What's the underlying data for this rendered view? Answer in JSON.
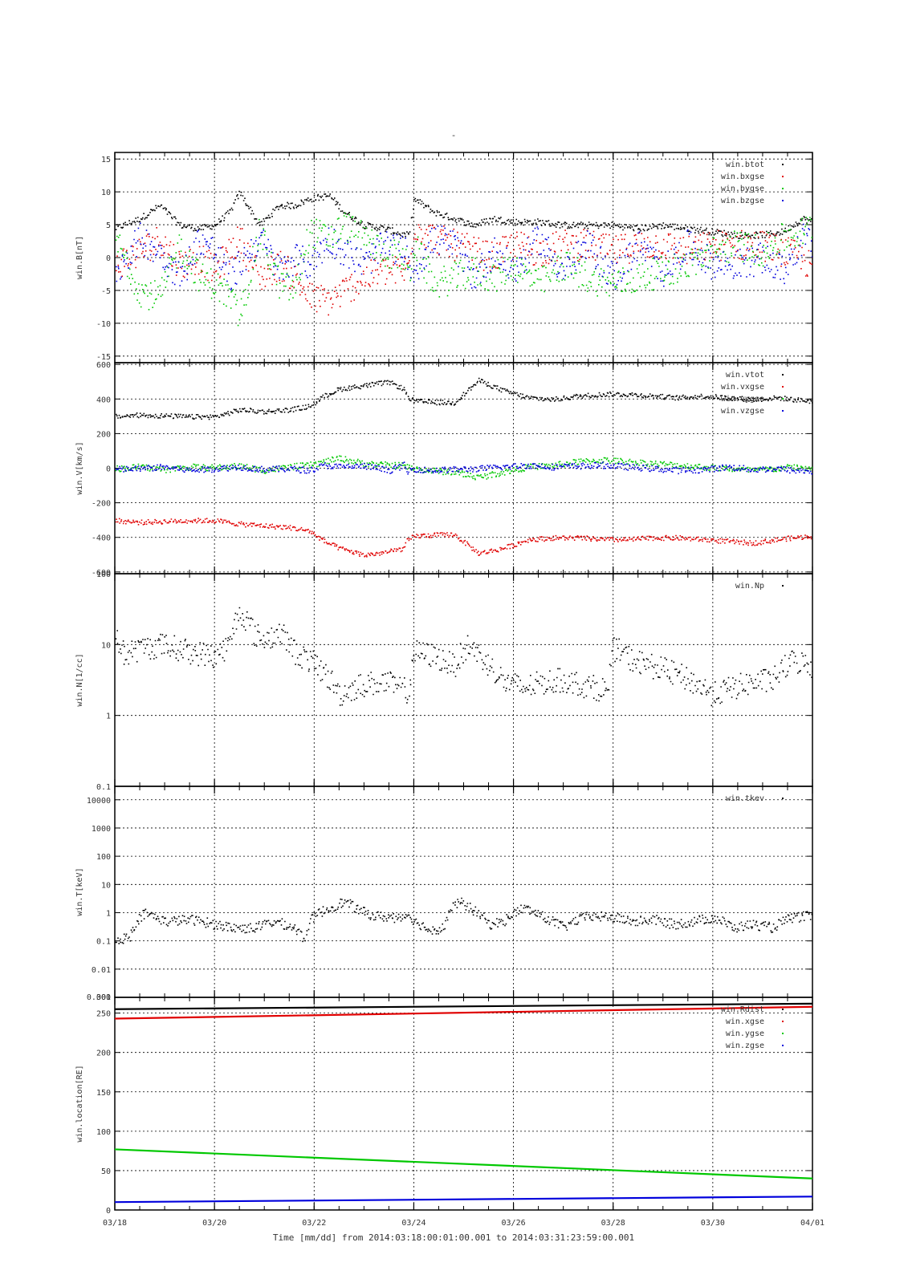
{
  "title": "-",
  "time_axis": {
    "ticks": [
      "03/18",
      "03/20",
      "03/22",
      "03/24",
      "03/26",
      "03/28",
      "03/30",
      "04/01"
    ],
    "range_days": [
      0,
      14
    ],
    "xlabel": "Time [mm/dd]  from 2014:03:18:00:01:00.001  to  2014:03:31:23:59:00.001"
  },
  "chart_data": [
    {
      "type": "scatter",
      "ylabel": "win.B[nT]",
      "ylim": [
        -16,
        16
      ],
      "yticks": [
        15,
        10,
        5,
        0,
        -5,
        -10,
        -15
      ],
      "grid": true,
      "legend_position": "top-right",
      "x": [
        0,
        0.5,
        0.9,
        1.3,
        1.7,
        2.0,
        2.3,
        2.5,
        2.9,
        3.3,
        3.6,
        3.9,
        4.3,
        4.6,
        5.0,
        5.4,
        5.8,
        5.9,
        6.0,
        6.4,
        6.8,
        7.2,
        7.6,
        8.0,
        8.5,
        9.0,
        9.5,
        10.0,
        10.5,
        11.0,
        11.5,
        12.0,
        12.5,
        13.0,
        13.4,
        13.8,
        14.0
      ],
      "series": [
        {
          "name": "win.btot",
          "color": "#000000",
          "values": [
            4.5,
            6,
            8,
            5,
            4.5,
            5,
            7,
            10,
            5,
            8,
            8,
            9,
            9.5,
            7,
            5,
            4.5,
            3.5,
            3.5,
            9,
            7,
            6,
            5,
            6,
            5.5,
            5.5,
            5,
            5,
            5,
            4.5,
            5,
            4.5,
            4,
            3.5,
            3.5,
            4,
            6,
            5.5
          ]
        },
        {
          "name": "win.bxgse",
          "color": "#e00000",
          "values": [
            -1,
            1,
            3,
            -1,
            0,
            -2,
            1,
            3,
            -3,
            -1,
            -3,
            -6,
            -6.5,
            -5,
            -3,
            -2,
            -2,
            -1,
            5,
            3,
            2,
            1,
            0,
            2,
            1,
            2,
            2,
            1,
            2,
            2,
            1,
            2,
            2,
            2,
            1,
            0,
            -2
          ]
        },
        {
          "name": "win.bygse",
          "color": "#00c800",
          "values": [
            3,
            -5,
            -6,
            2,
            -3,
            -4,
            -6,
            -9,
            4,
            -4,
            -5,
            4,
            3,
            5,
            3,
            1,
            0,
            -3,
            2,
            -4,
            -3,
            -2,
            -3,
            -1,
            -4,
            -1,
            -3,
            -4,
            -3,
            -2,
            -1,
            1,
            2,
            1,
            3,
            4,
            5
          ]
        },
        {
          "name": "win.bzgse",
          "color": "#0000dc",
          "values": [
            -2,
            3,
            1,
            -3,
            3,
            1,
            -3,
            -1,
            3,
            -2,
            0,
            -1,
            3,
            1,
            -1,
            2,
            1,
            0,
            -2,
            3,
            2,
            -3,
            1,
            -2,
            3,
            -2,
            2,
            -3,
            2,
            -2,
            2,
            -1,
            -1,
            0,
            -2,
            3,
            2
          ]
        }
      ]
    },
    {
      "type": "scatter",
      "ylabel": "win.V[km/s]",
      "ylim": [
        -610,
        610
      ],
      "yticks": [
        600,
        400,
        200,
        0,
        -200,
        -400,
        -600
      ],
      "grid": true,
      "legend_position": "top-right",
      "x": [
        0,
        0.5,
        1,
        1.5,
        2,
        2.5,
        3,
        3.5,
        3.9,
        4.2,
        4.5,
        5,
        5.5,
        5.8,
        5.85,
        6.0,
        6.3,
        6.8,
        7.3,
        7.8,
        8.3,
        8.8,
        9.3,
        9.8,
        10.3,
        10.8,
        11.3,
        11.8,
        12.3,
        12.8,
        13.3,
        13.6,
        14.0
      ],
      "series": [
        {
          "name": "win.vtot",
          "color": "#000000",
          "values": [
            300,
            310,
            305,
            300,
            300,
            340,
            330,
            340,
            360,
            420,
            460,
            480,
            500,
            460,
            420,
            390,
            385,
            380,
            510,
            450,
            410,
            400,
            420,
            430,
            430,
            420,
            410,
            420,
            410,
            400,
            410,
            400,
            390
          ]
        },
        {
          "name": "win.vxgse",
          "color": "#e00000",
          "values": [
            -300,
            -310,
            -305,
            -300,
            -300,
            -320,
            -330,
            -340,
            -360,
            -420,
            -460,
            -500,
            -480,
            -460,
            -420,
            -390,
            -385,
            -380,
            -490,
            -460,
            -410,
            -400,
            -400,
            -410,
            -410,
            -400,
            -400,
            -410,
            -420,
            -430,
            -410,
            -400,
            -390
          ]
        },
        {
          "name": "win.vygse",
          "color": "#00c800",
          "values": [
            0,
            10,
            -5,
            10,
            5,
            15,
            -10,
            10,
            20,
            40,
            60,
            30,
            20,
            20,
            10,
            0,
            -10,
            -20,
            -50,
            -20,
            10,
            20,
            40,
            50,
            40,
            30,
            20,
            10,
            0,
            -10,
            0,
            10,
            0
          ]
        },
        {
          "name": "win.vzgse",
          "color": "#0000dc",
          "values": [
            -5,
            0,
            10,
            -10,
            0,
            10,
            -5,
            0,
            -10,
            20,
            10,
            15,
            -10,
            20,
            -20,
            0,
            -10,
            -5,
            0,
            10,
            20,
            10,
            15,
            20,
            10,
            0,
            -10,
            -5,
            10,
            -5,
            0,
            -10,
            -15
          ]
        }
      ]
    },
    {
      "type": "scatter",
      "ylabel": "win.N[1/cc]",
      "yscale": "log",
      "ylim": [
        0.1,
        100
      ],
      "yticks": [
        100,
        10,
        1,
        0.1
      ],
      "grid": true,
      "legend_position": "top-right",
      "x": [
        0,
        0.2,
        0.5,
        1,
        1.5,
        2,
        2.3,
        2.5,
        2.8,
        3.0,
        3.3,
        3.6,
        3.9,
        4.2,
        4.5,
        4.8,
        5,
        5.4,
        5.7,
        5.9,
        6.0,
        6.4,
        6.8,
        7.1,
        7.4,
        7.8,
        8.2,
        8.6,
        9.0,
        9.5,
        9.9,
        10.0,
        10.4,
        10.8,
        11.2,
        11.6,
        12.0,
        12.4,
        12.8,
        13.2,
        13.6,
        14.0
      ],
      "series": [
        {
          "name": "win.Np",
          "color": "#000000",
          "values": [
            12,
            7,
            9,
            10,
            8,
            7,
            10,
            30,
            14,
            12,
            15,
            8,
            6,
            4,
            2,
            2.5,
            2.8,
            3,
            2.5,
            2.2,
            8,
            7,
            5,
            10,
            6,
            3,
            2.5,
            3,
            3.2,
            2.6,
            2.3,
            9,
            6,
            5,
            4,
            3,
            2,
            2.5,
            3,
            3.2,
            6,
            5
          ]
        }
      ]
    },
    {
      "type": "scatter",
      "ylabel": "win.T[keV]",
      "yscale": "log",
      "ylim": [
        0.001,
        30000
      ],
      "yticks": [
        10000,
        1000,
        100,
        10,
        1,
        0.1,
        0.01,
        0.001
      ],
      "bottom_tick_labels": [
        "0.001",
        "300"
      ],
      "grid": true,
      "legend_position": "top-right",
      "x": [
        0,
        0.3,
        0.6,
        1,
        1.5,
        2,
        2.4,
        2.8,
        3.2,
        3.6,
        3.8,
        4.0,
        4.3,
        4.6,
        4.9,
        5.2,
        5.6,
        5.9,
        6.0,
        6.3,
        6.6,
        6.9,
        7.2,
        7.5,
        7.8,
        8.2,
        8.6,
        9.0,
        9.5,
        10,
        10.4,
        10.8,
        11.2,
        11.6,
        12,
        12.4,
        12.8,
        13.2,
        13.6,
        14.0
      ],
      "series": [
        {
          "name": "win.tkev",
          "color": "#000000",
          "values": [
            0.1,
            0.15,
            1,
            0.5,
            0.6,
            0.4,
            0.3,
            0.3,
            0.5,
            0.3,
            0.1,
            0.8,
            1.5,
            2.5,
            1.2,
            0.8,
            0.7,
            0.9,
            0.5,
            0.25,
            0.3,
            2.5,
            1.2,
            0.4,
            0.5,
            1.5,
            0.7,
            0.3,
            0.8,
            0.7,
            0.5,
            0.6,
            0.4,
            0.5,
            0.7,
            0.3,
            0.4,
            0.3,
            0.7,
            0.8
          ]
        }
      ]
    },
    {
      "type": "scatter",
      "ylabel": "win.location[RE]",
      "ylim": [
        0,
        270
      ],
      "yticks": [
        250,
        200,
        150,
        100,
        50,
        0
      ],
      "grid": true,
      "legend_position": "top-right",
      "x": [
        0,
        14
      ],
      "series": [
        {
          "name": "win.Rdist",
          "color": "#000000",
          "values": [
            255,
            262
          ]
        },
        {
          "name": "win.xgse",
          "color": "#e00000",
          "values": [
            243,
            258
          ]
        },
        {
          "name": "win.ygse",
          "color": "#00c800",
          "values": [
            77,
            40
          ]
        },
        {
          "name": "win.zgse",
          "color": "#0000dc",
          "values": [
            10,
            17
          ]
        }
      ]
    }
  ]
}
